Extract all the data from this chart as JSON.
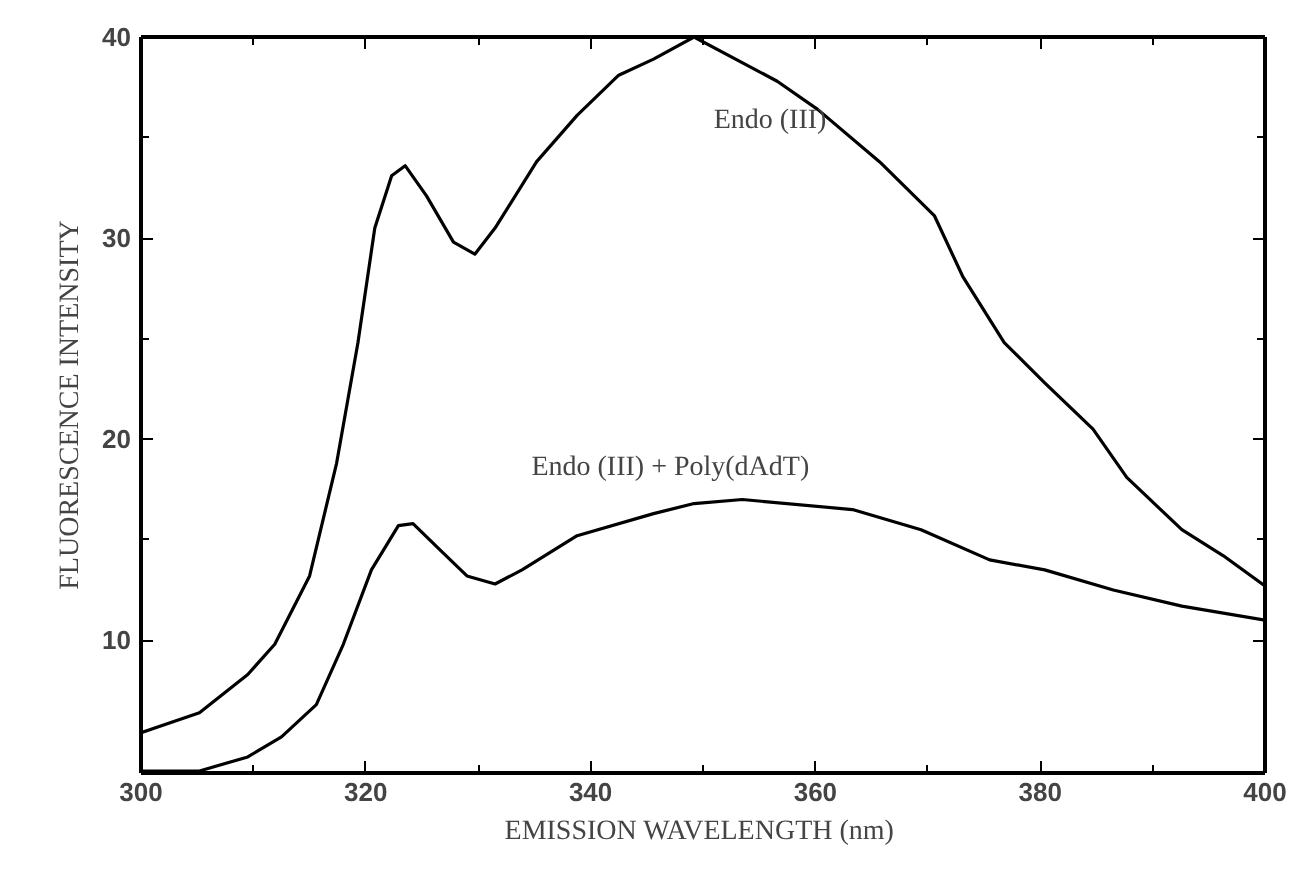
{
  "chart_data": {
    "type": "line",
    "xlabel": "EMISSION WAVELENGTH  (nm)",
    "ylabel": "FLUORESCENCE INTENSITY",
    "xlim": [
      300,
      400
    ],
    "ylim": [
      3.4,
      40
    ],
    "xticks": [
      300,
      320,
      340,
      360,
      380,
      400
    ],
    "yticks": [
      10,
      20,
      30,
      40
    ],
    "grid": false,
    "marker": "none",
    "line_style": "solid",
    "series": [
      {
        "name": "Endo (III)",
        "color": "#000000",
        "x": [
          300,
          305.2,
          309.5,
          311.9,
          315,
          317.4,
          319.3,
          320.8,
          322.3,
          323.5,
          325.4,
          327.8,
          329.7,
          331.5,
          335.2,
          338.8,
          342.5,
          345.6,
          349.2,
          356.6,
          360.2,
          365.7,
          370.6,
          373.1,
          376.8,
          380.4,
          384.7,
          387.7,
          392.6,
          396.3,
          400
        ],
        "values": [
          5.4,
          6.4,
          8.3,
          9.8,
          13.2,
          18.8,
          24.8,
          30.5,
          33.1,
          33.6,
          32.1,
          29.8,
          29.2,
          30.5,
          33.8,
          36.1,
          38.1,
          38.9,
          40,
          37.8,
          36.4,
          33.8,
          31.1,
          28.1,
          24.8,
          22.8,
          20.5,
          18.1,
          15.5,
          14.2,
          12.7
        ]
      },
      {
        "name": "Endo (III) + Poly(dAdT)",
        "color": "#000000",
        "x": [
          300,
          305.2,
          309.5,
          312.5,
          315.6,
          318,
          320.5,
          322.9,
          324.2,
          326.6,
          329,
          331.5,
          333.9,
          338.8,
          345.6,
          349.2,
          353.5,
          363.3,
          369.4,
          375.5,
          380.4,
          386.5,
          392.6,
          400
        ],
        "values": [
          3.5,
          3.5,
          4.2,
          5.2,
          6.8,
          9.8,
          13.5,
          15.7,
          15.8,
          14.5,
          13.2,
          12.8,
          13.5,
          15.2,
          16.3,
          16.8,
          17.0,
          16.5,
          15.5,
          14.0,
          13.5,
          12.5,
          11.7,
          11.0
        ]
      }
    ],
    "legend": false
  }
}
